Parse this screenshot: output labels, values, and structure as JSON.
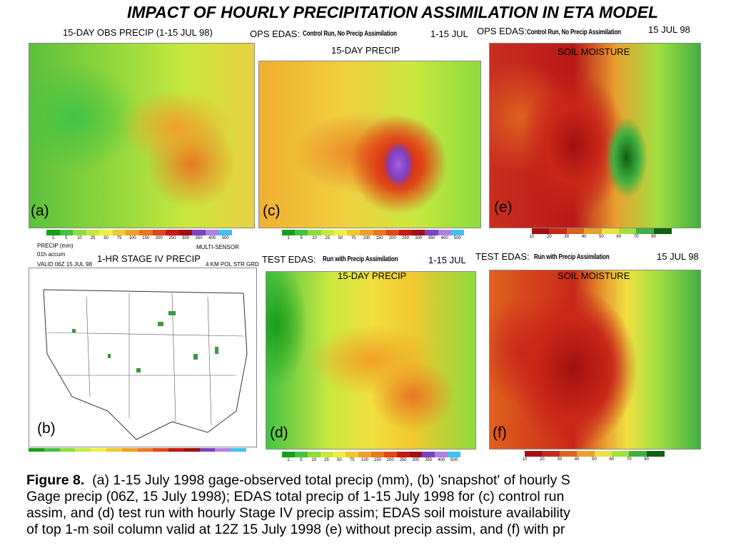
{
  "title": "IMPACT OF HOURLY PRECIPITATION ASSIMILATION IN ETA MODEL",
  "panels": [
    {
      "header": [
        "15-DAY OBS PRECIP (1-15 JUL 98)"
      ],
      "label": "(a)",
      "legend": {
        "colors": [
          "#1a9e1a",
          "#44c244",
          "#8edc3c",
          "#c8e840",
          "#f0f040",
          "#f0c830",
          "#f0a028",
          "#e87820",
          "#e04818",
          "#c81810",
          "#a01010",
          "#8040c0",
          "#b080e0",
          "#40c0f0"
        ],
        "ticks": [
          1,
          5,
          10,
          25,
          50,
          75,
          100,
          150,
          200,
          250,
          300,
          350,
          400,
          500
        ]
      }
    },
    {
      "header": [
        "PRECIP (mm)",
        "01h accum",
        "VALID 06Z 15 JUL 98",
        "MULTI-SENSOR",
        "1-HR STAGE IV PRECIP",
        "4 KM POL STR GRD"
      ],
      "label": "(b)",
      "legend": {
        "colors": [
          "#1a9e1a",
          "#44c244",
          "#8edc3c",
          "#c8e840",
          "#f0f040",
          "#f0c830",
          "#f0a028",
          "#e87820",
          "#e04818",
          "#c81810",
          "#a01010",
          "#8040c0",
          "#b080e0",
          "#40c0f0"
        ],
        "ticks": []
      }
    },
    {
      "header": [
        "OPS EDAS:",
        "Control Run, No Precip Assimilation",
        "1-15 JUL",
        "15-DAY PRECIP"
      ],
      "label": "(c)",
      "legend": {
        "colors": [
          "#1a9e1a",
          "#44c244",
          "#8edc3c",
          "#c8e840",
          "#f0f040",
          "#f0c830",
          "#f0a028",
          "#e87820",
          "#e04818",
          "#c81810",
          "#a01010",
          "#8040c0",
          "#b080e0",
          "#40c0f0"
        ],
        "ticks": [
          1,
          5,
          10,
          25,
          50,
          75,
          100,
          150,
          200,
          250,
          300,
          350,
          400,
          500
        ]
      }
    },
    {
      "header": [
        "TEST EDAS:",
        "Run with Precip Assimilation",
        "1-15 JUL",
        "15-DAY PRECIP"
      ],
      "label": "(d)",
      "legend": {
        "colors": [
          "#1a9e1a",
          "#44c244",
          "#8edc3c",
          "#c8e840",
          "#f0f040",
          "#f0c830",
          "#f0a028",
          "#e87820",
          "#e04818",
          "#c81810",
          "#a01010",
          "#8040c0",
          "#b080e0",
          "#40c0f0"
        ],
        "ticks": [
          1,
          5,
          10,
          25,
          50,
          75,
          100,
          150,
          200,
          250,
          300,
          350,
          400,
          500
        ]
      }
    },
    {
      "header": [
        "OPS EDAS:",
        "Control Run, No Precip Assimilation",
        "15 JUL 98",
        "SOIL MOISTURE"
      ],
      "label": "(e)",
      "legend": {
        "colors": [
          "#a01010",
          "#c82818",
          "#e06020",
          "#e8a030",
          "#f0e040",
          "#a0e040",
          "#40b040",
          "#106010"
        ],
        "ticks": [
          10,
          20,
          30,
          40,
          50,
          60,
          70,
          80
        ]
      }
    },
    {
      "header": [
        "TEST EDAS:",
        "Run with Precip Assimilation",
        "15 JUL 98",
        "SOIL MOISTURE"
      ],
      "label": "(f)",
      "legend": {
        "colors": [
          "#a01010",
          "#c82818",
          "#e06020",
          "#e8a030",
          "#f0e040",
          "#a0e040",
          "#40b040",
          "#106010"
        ],
        "ticks": [
          10,
          20,
          30,
          40,
          50,
          60,
          70,
          80
        ]
      }
    }
  ],
  "caption": {
    "lead": "Figure 8.",
    "lines": [
      "(a) 1-15 July 1998 gage-observed total precip (mm), (b) 'snapshot' of hourly S",
      "Gage precip (06Z, 15 July 1998); EDAS total precip of 1-15 July 1998 for (c) control run",
      "assim, and (d) test run with hourly Stage IV precip assim; EDAS soil moisture availability",
      "of top 1-m soil column valid at 12Z 15 July 1998 (e) without precip assim, and (f) with pr"
    ]
  }
}
